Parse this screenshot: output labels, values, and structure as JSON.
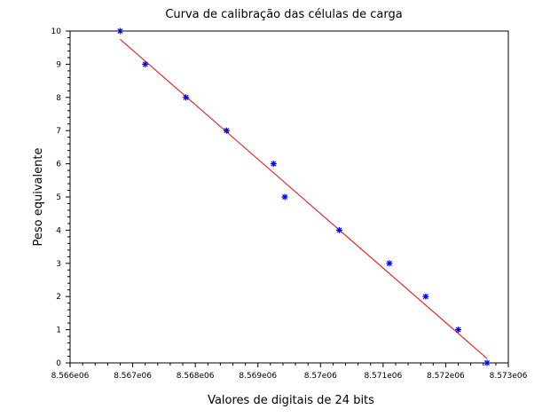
{
  "chart_data": {
    "type": "scatter",
    "title": "Curva de calibração das células de carga",
    "xlabel": "Valores de digitais de 24 bits",
    "ylabel": "Peso equivalente",
    "xlim": [
      8566000,
      8573000
    ],
    "ylim": [
      0,
      10
    ],
    "x_ticks": [
      8566000,
      8567000,
      8568000,
      8569000,
      8570000,
      8571000,
      8572000,
      8573000
    ],
    "x_tick_labels": [
      "8.566e06",
      "8.567e06",
      "8.568e06",
      "8.569e06",
      "8.57e06",
      "8.571e06",
      "8.572e06",
      "8.573e06"
    ],
    "y_ticks": [
      0,
      1,
      2,
      3,
      4,
      5,
      6,
      7,
      8,
      9,
      10
    ],
    "y_tick_labels": [
      "0",
      "1",
      "2",
      "3",
      "4",
      "5",
      "6",
      "7",
      "8",
      "9",
      "10"
    ],
    "grid": false,
    "series": [
      {
        "type": "scatter",
        "marker": "asterisk",
        "color": "#0000ff",
        "x": [
          8566800,
          8567200,
          8567850,
          8568500,
          8569250,
          8569430,
          8570300,
          8571100,
          8571680,
          8572200,
          8572660
        ],
        "y": [
          10,
          9,
          8,
          7,
          6,
          5,
          4,
          3,
          2,
          1,
          0
        ]
      },
      {
        "type": "line",
        "color": "#ff0000",
        "x": [
          8566800,
          8572660
        ],
        "y": [
          9.75,
          0.13
        ]
      }
    ]
  }
}
